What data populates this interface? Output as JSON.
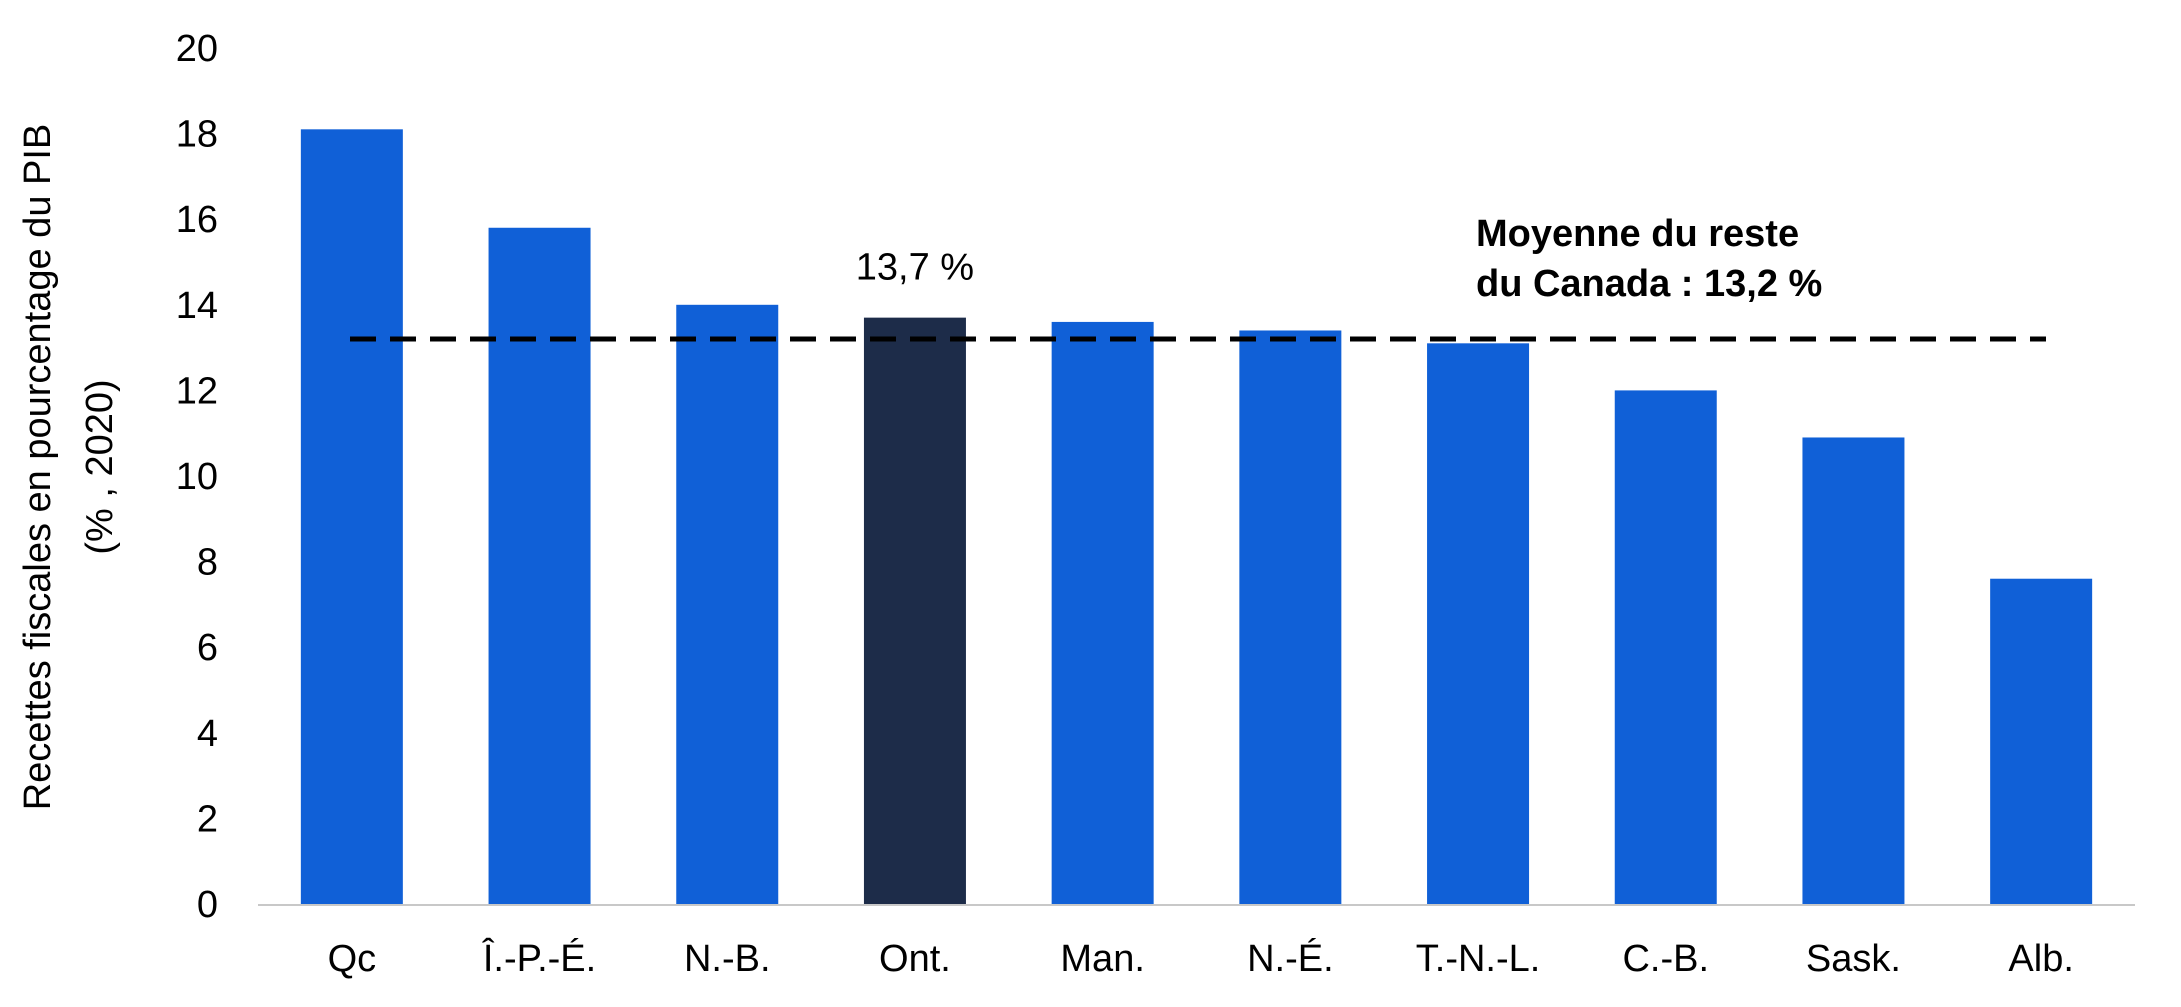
{
  "chart_data": {
    "type": "bar",
    "categories": [
      "Qc",
      "Î.-P.-É.",
      "N.-B.",
      "Ont.",
      "Man.",
      "N.-É.",
      "T.-N.-L.",
      "C.-B.",
      "Sask.",
      "Alb."
    ],
    "values": [
      18.1,
      15.8,
      14.0,
      13.7,
      13.6,
      13.4,
      13.1,
      12.0,
      10.9,
      7.6
    ],
    "highlight_index": 3,
    "ylabel_lines": [
      "Recettes fiscales en pourcentage du PIB",
      "(% , 2020)"
    ],
    "ylim": [
      0,
      20
    ],
    "yticks": [
      0,
      2,
      4,
      6,
      8,
      10,
      12,
      14,
      16,
      18,
      20
    ],
    "grid": false,
    "data_labels": [
      {
        "index": 3,
        "text": "13,7 %"
      }
    ],
    "reference_line": {
      "value": 13.2,
      "style": "dashed",
      "label_lines": [
        "Moyenne du reste",
        "du Canada : 13,2 %"
      ]
    },
    "colors": {
      "bar": "#1060D7",
      "highlight": "#1D2C49",
      "reference_line": "#000000",
      "axis": "#C8C8C8"
    }
  }
}
